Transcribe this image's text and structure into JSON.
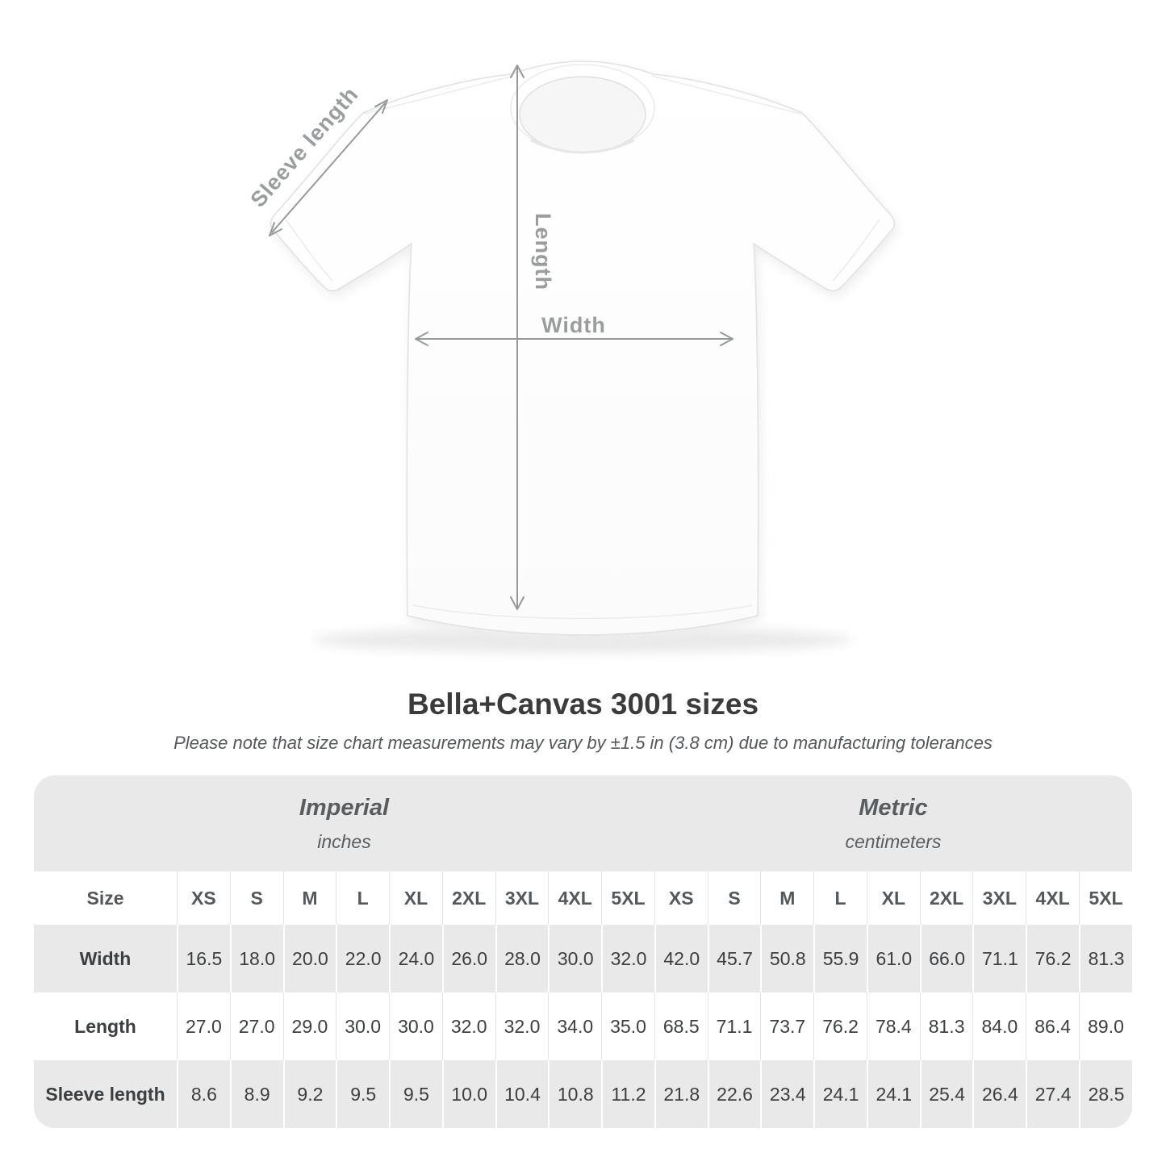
{
  "page": {
    "background": "#ffffff"
  },
  "diagram": {
    "sleeve_length_label": "Sleeve length",
    "length_label": "Length",
    "width_label": "Width",
    "arrow_color": "#97999b",
    "label_color": "#9a9c9e",
    "shirt_color": "#ffffff"
  },
  "title": "Bella+Canvas 3001 sizes",
  "subtitle": "Please note that size chart measurements may vary by ±1.5 in (3.8 cm) due to manufacturing tolerances",
  "size_chart": {
    "corner_label": "Size",
    "groups": [
      {
        "label": "Imperial",
        "unit": "inches"
      },
      {
        "label": "Metric",
        "unit": "centimeters"
      }
    ],
    "sizes": [
      "XS",
      "S",
      "M",
      "L",
      "XL",
      "2XL",
      "3XL",
      "4XL",
      "5XL"
    ],
    "rows": [
      {
        "label": "Width",
        "imperial": [
          "16.5",
          "18.0",
          "20.0",
          "22.0",
          "24.0",
          "26.0",
          "28.0",
          "30.0",
          "32.0"
        ],
        "metric": [
          "42.0",
          "45.7",
          "50.8",
          "55.9",
          "61.0",
          "66.0",
          "71.1",
          "76.2",
          "81.3"
        ]
      },
      {
        "label": "Length",
        "imperial": [
          "27.0",
          "27.0",
          "29.0",
          "30.0",
          "30.0",
          "32.0",
          "32.0",
          "34.0",
          "35.0"
        ],
        "metric": [
          "68.5",
          "71.1",
          "73.7",
          "76.2",
          "78.4",
          "81.3",
          "84.0",
          "86.4",
          "89.0"
        ]
      },
      {
        "label": "Sleeve length",
        "imperial": [
          "8.6",
          "8.9",
          "9.2",
          "9.5",
          "9.5",
          "10.0",
          "10.4",
          "10.8",
          "11.2"
        ],
        "metric": [
          "21.8",
          "22.6",
          "23.4",
          "24.1",
          "24.1",
          "25.4",
          "26.4",
          "27.4",
          "28.5"
        ]
      }
    ],
    "row_colors": {
      "gray": "#e9e9e9",
      "white": "#ffffff"
    }
  },
  "chart_data": {
    "type": "table",
    "title": "Bella+Canvas 3001 sizes",
    "note": "Please note that size chart measurements may vary by ±1.5 in (3.8 cm) due to manufacturing tolerances",
    "column_groups": [
      "Imperial (inches)",
      "Metric (centimeters)"
    ],
    "sizes": [
      "XS",
      "S",
      "M",
      "L",
      "XL",
      "2XL",
      "3XL",
      "4XL",
      "5XL"
    ],
    "measurements": [
      {
        "name": "Width",
        "imperial_in": [
          16.5,
          18.0,
          20.0,
          22.0,
          24.0,
          26.0,
          28.0,
          30.0,
          32.0
        ],
        "metric_cm": [
          42.0,
          45.7,
          50.8,
          55.9,
          61.0,
          66.0,
          71.1,
          76.2,
          81.3
        ]
      },
      {
        "name": "Length",
        "imperial_in": [
          27.0,
          27.0,
          29.0,
          30.0,
          30.0,
          32.0,
          32.0,
          34.0,
          35.0
        ],
        "metric_cm": [
          68.5,
          71.1,
          73.7,
          76.2,
          78.4,
          81.3,
          84.0,
          86.4,
          89.0
        ]
      },
      {
        "name": "Sleeve length",
        "imperial_in": [
          8.6,
          8.9,
          9.2,
          9.5,
          9.5,
          10.0,
          10.4,
          10.8,
          11.2
        ],
        "metric_cm": [
          21.8,
          22.6,
          23.4,
          24.1,
          24.1,
          25.4,
          26.4,
          27.4,
          28.5
        ]
      }
    ]
  }
}
